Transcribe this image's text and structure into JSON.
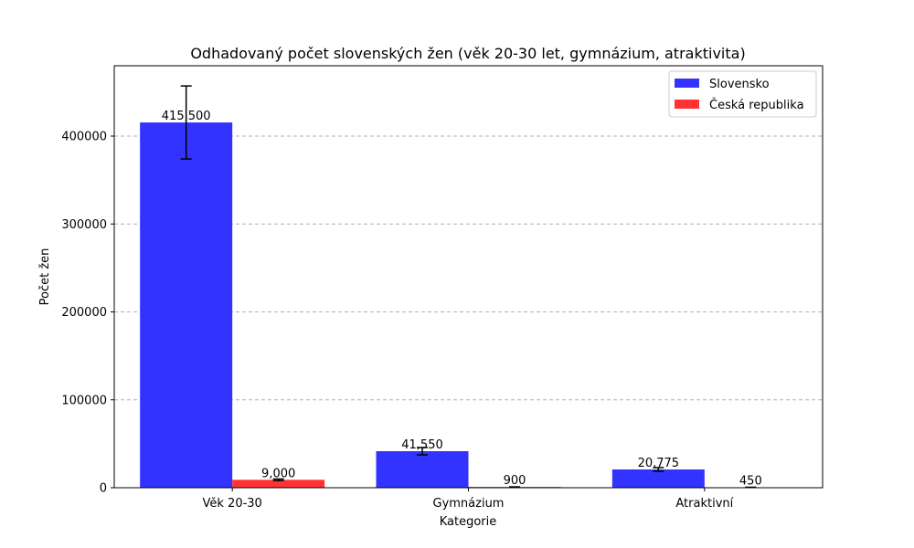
{
  "chart_data": {
    "type": "bar",
    "title": "Odhadovaný počet slovenských žen (věk 20-30 let, gymnázium, atraktivita)",
    "xlabel": "Kategorie",
    "ylabel": "Počet žen",
    "categories": [
      "Věk 20-30",
      "Gymnázium",
      "Atraktivní"
    ],
    "ylim": [
      0,
      480000
    ],
    "yticks": [
      0,
      100000,
      200000,
      300000,
      400000
    ],
    "ytick_labels": [
      "0",
      "100000",
      "200000",
      "300000",
      "400000"
    ],
    "grid": "y-dashed",
    "legend_position": "top-right",
    "series": [
      {
        "name": "Slovensko",
        "color": "#3333ff",
        "values": [
          415500,
          41550,
          20775
        ],
        "labels": [
          "415,500",
          "41,550",
          "20,775"
        ],
        "error": [
          41550,
          4155,
          2078
        ]
      },
      {
        "name": "Česká republika",
        "color": "#ff3333",
        "values": [
          9000,
          900,
          450
        ],
        "labels": [
          "9,000",
          "900",
          "450"
        ],
        "error": [
          900,
          90,
          45
        ]
      }
    ]
  }
}
